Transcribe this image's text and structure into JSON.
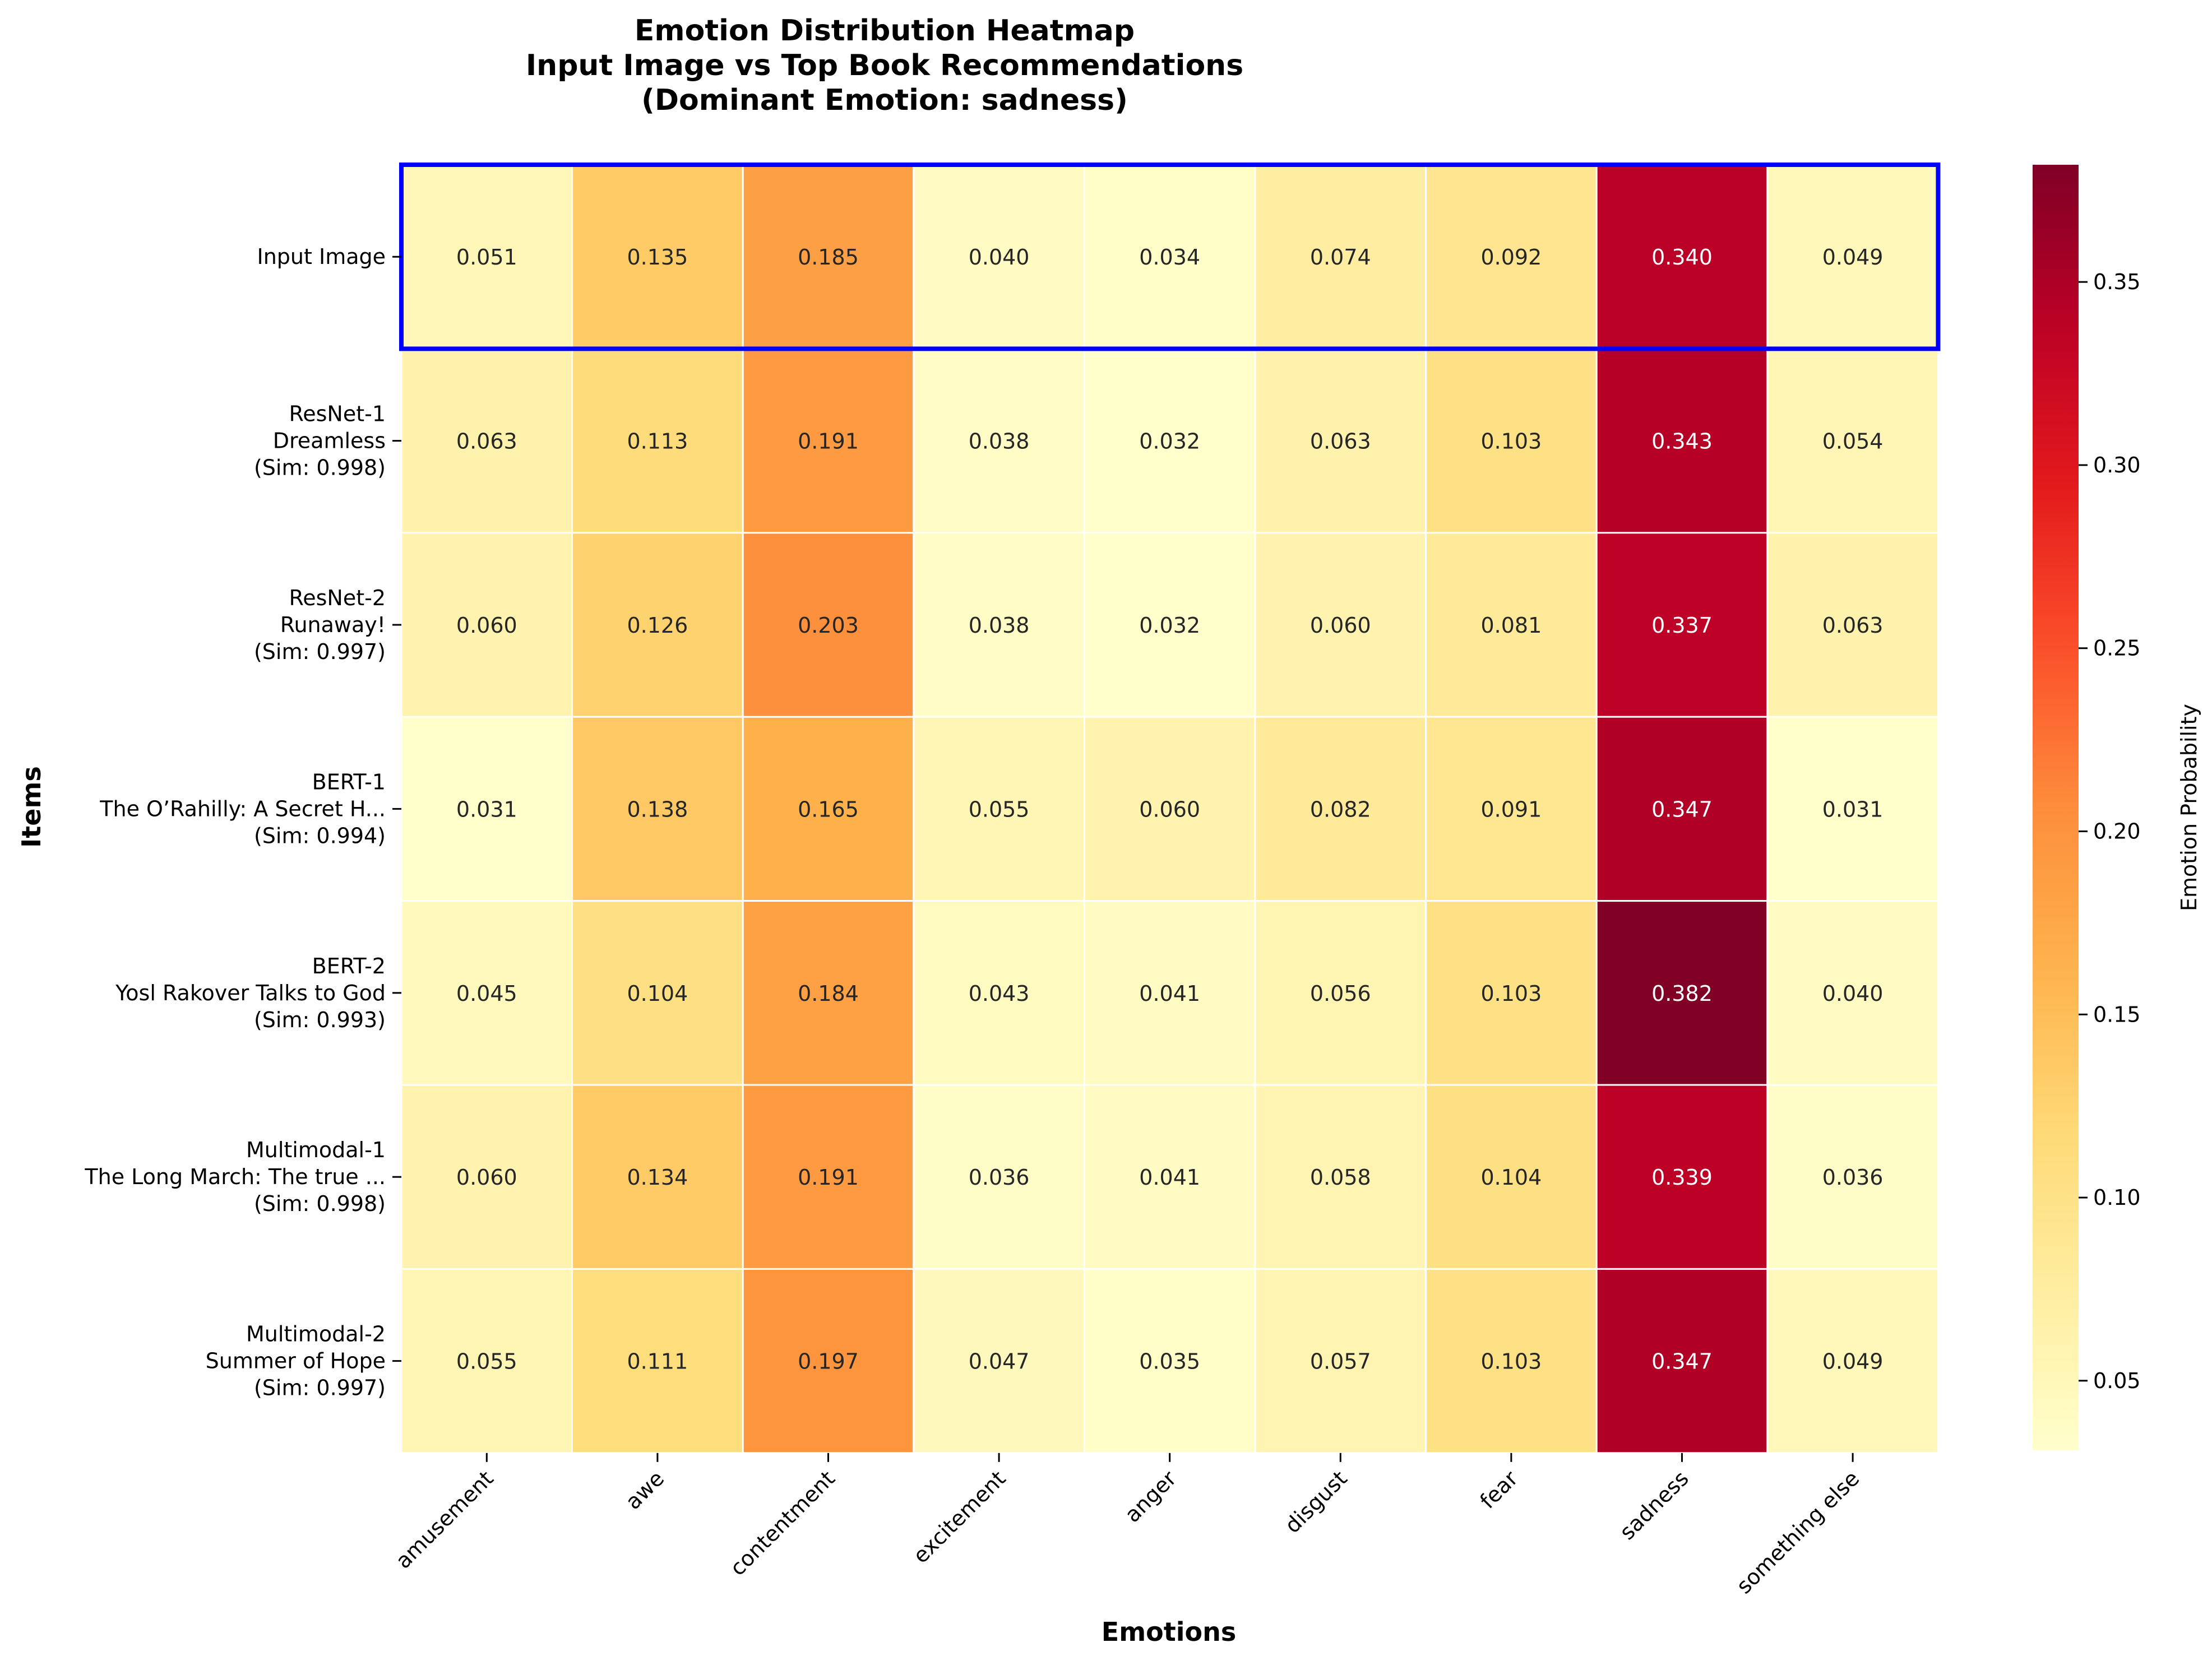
{
  "chart_data": {
    "type": "heatmap",
    "title_lines": [
      "Emotion Distribution Heatmap",
      "Input Image vs Top Book Recommendations",
      "(Dominant Emotion: sadness)"
    ],
    "xlabel": "Emotions",
    "ylabel": "Items",
    "columns": [
      "amusement",
      "awe",
      "contentment",
      "excitement",
      "anger",
      "disgust",
      "fear",
      "sadness",
      "something else"
    ],
    "rows": [
      {
        "label_lines": [
          "Input Image"
        ],
        "values": [
          0.051,
          0.135,
          0.185,
          0.04,
          0.034,
          0.074,
          0.092,
          0.34,
          0.049
        ],
        "highlighted": true
      },
      {
        "label_lines": [
          "ResNet-1",
          "Dreamless",
          "(Sim: 0.998)"
        ],
        "values": [
          0.063,
          0.113,
          0.191,
          0.038,
          0.032,
          0.063,
          0.103,
          0.343,
          0.054
        ]
      },
      {
        "label_lines": [
          "ResNet-2",
          "Runaway!",
          "(Sim: 0.997)"
        ],
        "values": [
          0.06,
          0.126,
          0.203,
          0.038,
          0.032,
          0.06,
          0.081,
          0.337,
          0.063
        ]
      },
      {
        "label_lines": [
          "BERT-1",
          "The O’Rahilly: A Secret H...",
          "(Sim: 0.994)"
        ],
        "values": [
          0.031,
          0.138,
          0.165,
          0.055,
          0.06,
          0.082,
          0.091,
          0.347,
          0.031
        ]
      },
      {
        "label_lines": [
          "BERT-2",
          "Yosl Rakover Talks to God",
          "(Sim: 0.993)"
        ],
        "values": [
          0.045,
          0.104,
          0.184,
          0.043,
          0.041,
          0.056,
          0.103,
          0.382,
          0.04
        ]
      },
      {
        "label_lines": [
          "Multimodal-1",
          "The Long March: The true ...",
          "(Sim: 0.998)"
        ],
        "values": [
          0.06,
          0.134,
          0.191,
          0.036,
          0.041,
          0.058,
          0.104,
          0.339,
          0.036
        ]
      },
      {
        "label_lines": [
          "Multimodal-2",
          "Summer of Hope",
          "(Sim: 0.997)"
        ],
        "values": [
          0.055,
          0.111,
          0.197,
          0.047,
          0.035,
          0.057,
          0.103,
          0.347,
          0.049
        ]
      }
    ],
    "value_format": "3 decimals",
    "colorbar": {
      "label": "Emotion Probability",
      "colormap": "YlOrRd",
      "vmin": 0.031,
      "vmax": 0.382,
      "ticks": [
        0.05,
        0.1,
        0.15,
        0.2,
        0.25,
        0.3,
        0.35
      ],
      "tick_labels": [
        "0.05",
        "0.10",
        "0.15",
        "0.20",
        "0.25",
        "0.30",
        "0.35"
      ]
    },
    "highlight_color": "#0000ff",
    "grid": false
  }
}
